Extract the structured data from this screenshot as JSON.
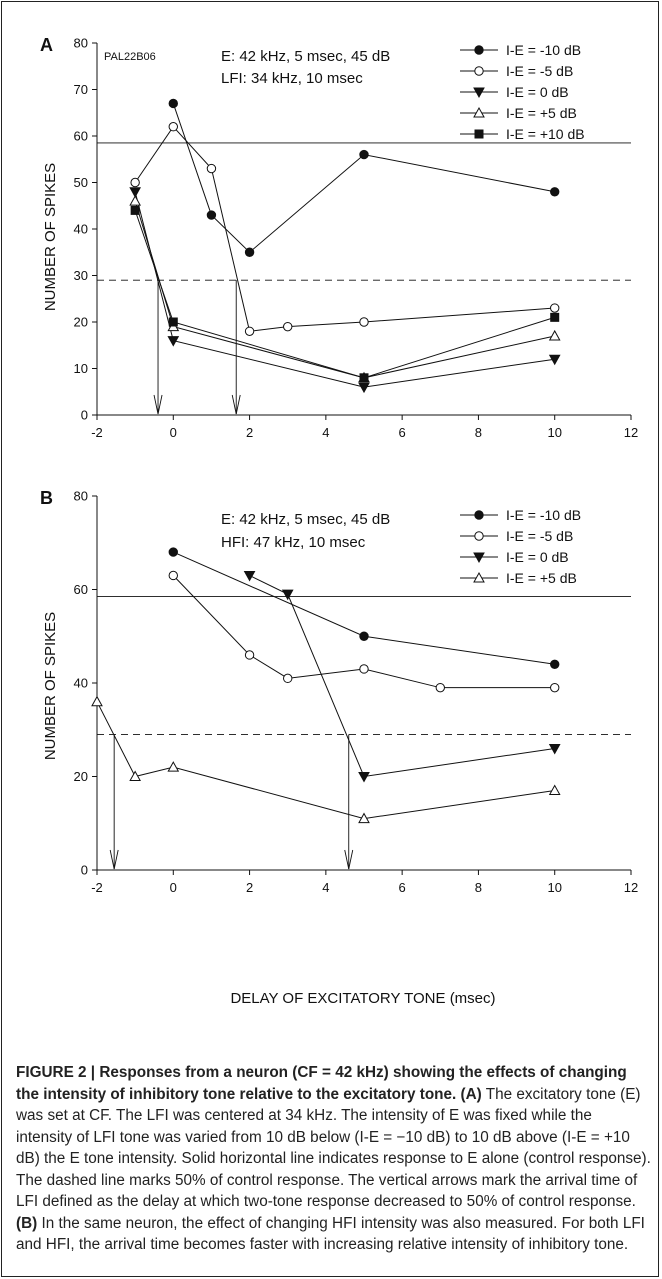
{
  "chart_data": [
    {
      "type": "line",
      "panel_label": "A",
      "id_label": "PAL22B06",
      "info_lines": [
        "E: 42 kHz, 5 msec, 45 dB",
        "LFI: 34 kHz, 10 msec"
      ],
      "ylabel": "NUMBER OF SPIKES",
      "xlim": [
        -2,
        12
      ],
      "ylim": [
        0,
        80
      ],
      "xticks": [
        -2,
        0,
        2,
        4,
        6,
        8,
        10,
        12
      ],
      "yticks": [
        0,
        10,
        20,
        30,
        40,
        50,
        60,
        70,
        80
      ],
      "control_line": 58.5,
      "half_control_line": 29,
      "arrows_x": [
        -0.4,
        1.65
      ],
      "legend_position": "top-right",
      "series": [
        {
          "name": "I-E = -10 dB",
          "marker": "circle-filled",
          "x": [
            0,
            1,
            2,
            5,
            10
          ],
          "y": [
            67,
            43,
            35,
            56,
            48
          ]
        },
        {
          "name": "I-E = -5 dB",
          "marker": "circle-open",
          "x": [
            -1,
            0,
            1,
            2,
            3,
            5,
            10
          ],
          "y": [
            50,
            62,
            53,
            18,
            19,
            20,
            23
          ]
        },
        {
          "name": "I-E = 0 dB",
          "marker": "triangle-down-filled",
          "x": [
            -1,
            0,
            5,
            10
          ],
          "y": [
            48,
            16,
            6,
            12
          ]
        },
        {
          "name": "I-E = +5 dB",
          "marker": "triangle-up-open",
          "x": [
            -1,
            0,
            5,
            10
          ],
          "y": [
            46,
            19,
            8,
            17
          ]
        },
        {
          "name": "I-E = +10 dB",
          "marker": "square-filled",
          "x": [
            -1,
            0,
            5,
            10
          ],
          "y": [
            44,
            20,
            8,
            21
          ]
        }
      ]
    },
    {
      "type": "line",
      "panel_label": "B",
      "info_lines": [
        "E: 42 kHz, 5 msec, 45 dB",
        "HFI: 47 kHz, 10 msec"
      ],
      "ylabel": "NUMBER OF SPIKES",
      "xlabel": "DELAY OF EXCITATORY TONE (msec)",
      "xlim": [
        -2,
        12
      ],
      "ylim": [
        0,
        80
      ],
      "xticks": [
        -2,
        0,
        2,
        4,
        6,
        8,
        10,
        12
      ],
      "yticks": [
        0,
        20,
        40,
        60,
        80
      ],
      "control_line": 58.5,
      "half_control_line": 29,
      "arrows_x": [
        -1.55,
        4.6
      ],
      "legend_position": "top-right",
      "series": [
        {
          "name": "I-E = -10 dB",
          "marker": "circle-filled",
          "x": [
            0,
            5,
            10
          ],
          "y": [
            68,
            50,
            44
          ]
        },
        {
          "name": "I-E = -5 dB",
          "marker": "circle-open",
          "x": [
            0,
            2,
            3,
            5,
            7,
            10
          ],
          "y": [
            63,
            46,
            41,
            43,
            39,
            39
          ]
        },
        {
          "name": "I-E = 0 dB",
          "marker": "triangle-down-filled",
          "x": [
            2,
            3,
            5,
            10
          ],
          "y": [
            63,
            59,
            20,
            26
          ]
        },
        {
          "name": "I-E = +5 dB",
          "marker": "triangle-up-open",
          "x": [
            -2,
            -1,
            0,
            5,
            10
          ],
          "y": [
            36,
            20,
            22,
            11,
            17
          ]
        }
      ]
    }
  ],
  "caption": {
    "title": "FIGURE 2 | Responses from a neuron (CF = 42 kHz) showing the effects of changing the intensity of inhibitory tone relative to the excitatory tone.",
    "a_label": "(A)",
    "a_text": " The excitatory tone (E) was set at CF. The LFI was centered at 34 kHz. The intensity of E was fixed while the intensity of LFI tone was varied from 10 dB below (I-E = −10 dB) to 10 dB above (I-E = +10 dB) the E tone intensity. Solid horizontal line indicates response to E alone (control response). The dashed line marks 50% of control response. The vertical arrows mark the arrival time of LFI defined as the delay at which two-tone response decreased to 50% of control response. ",
    "b_label": "(B)",
    "b_text": " In the same neuron, the effect of changing HFI intensity was also measured. For both LFI and HFI, the arrival time becomes faster with increasing relative intensity of inhibitory tone."
  }
}
